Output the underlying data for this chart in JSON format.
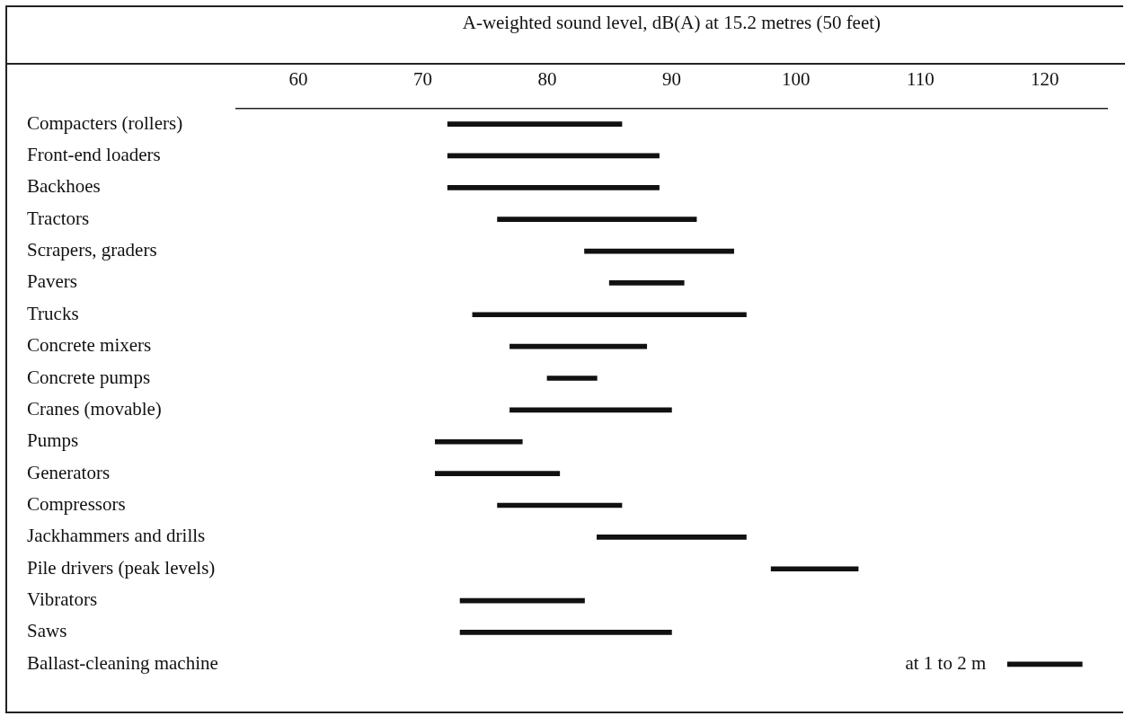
{
  "chart_data": {
    "type": "bar",
    "orientation": "horizontal",
    "xlabel": "A-weighted sound level, dB(A) at 15.2 metres (50 feet)",
    "categories": [
      "Compacters (rollers)",
      "Front-end loaders",
      "Backhoes",
      "Tractors",
      "Scrapers, graders",
      "Pavers",
      "Trucks",
      "Concrete mixers",
      "Concrete pumps",
      "Cranes (movable)",
      "Pumps",
      "Generators",
      "Compressors",
      "Jackhammers and drills",
      "Pile drivers (peak levels)",
      "Vibrators",
      "Saws",
      "Ballast-cleaning machine"
    ],
    "base": [
      72,
      72,
      72,
      76,
      83,
      85,
      74,
      77,
      80,
      77,
      71,
      71,
      76,
      84,
      98,
      73,
      73,
      117
    ],
    "values": [
      14,
      17,
      17,
      16,
      12,
      6,
      22,
      11,
      4,
      13,
      7,
      10,
      10,
      12,
      7,
      10,
      17,
      6
    ],
    "color": "#111111",
    "xlim": [
      55,
      125
    ],
    "xticks": [
      60,
      70,
      80,
      90,
      100,
      110,
      120
    ],
    "annotations": [
      {
        "text": "at 1 to 2 m",
        "x": 117,
        "y": "Ballast-cleaning machine"
      }
    ]
  }
}
